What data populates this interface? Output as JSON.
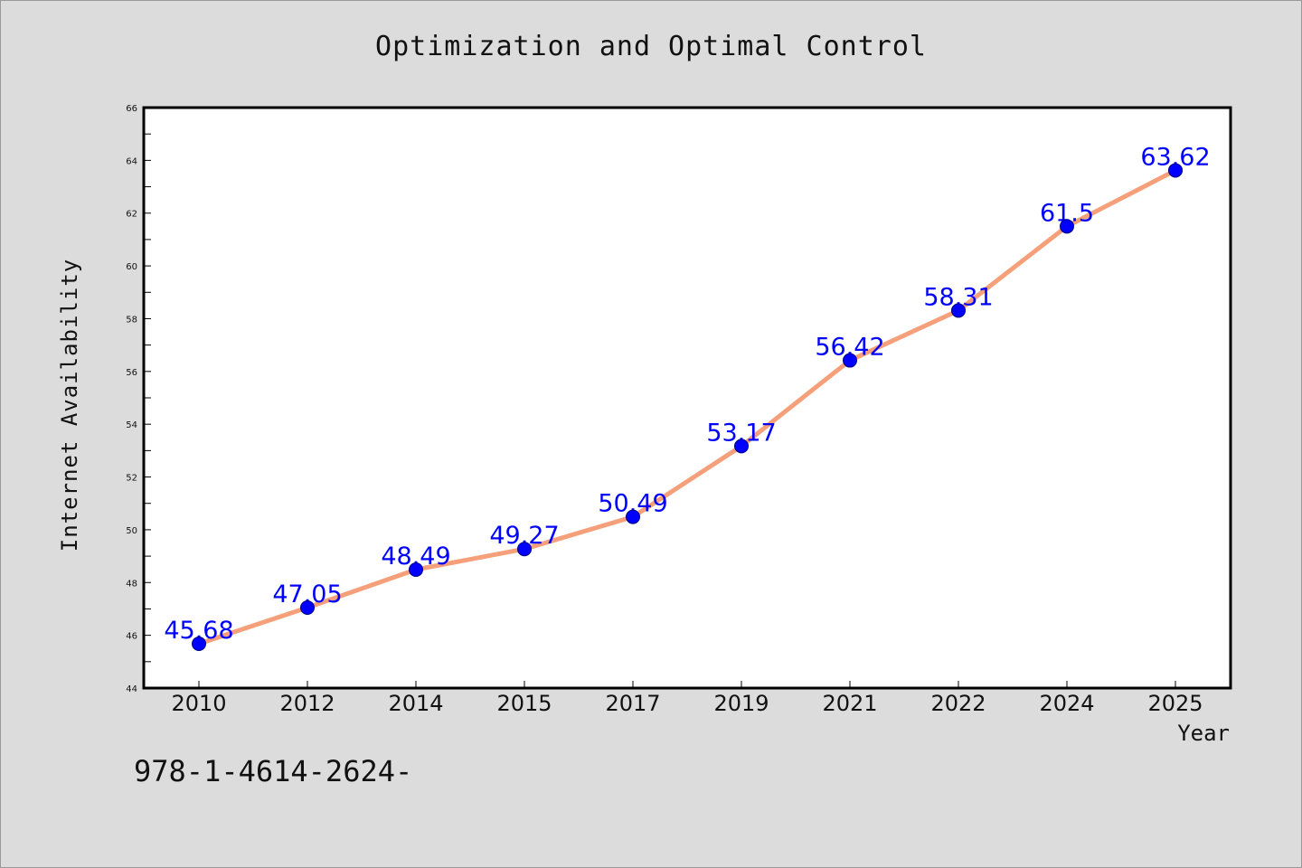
{
  "chart_data": {
    "type": "line",
    "title": "Optimization and Optimal Control",
    "xlabel": "Year",
    "ylabel": "Internet Availability",
    "categories": [
      "2010",
      "2012",
      "2014",
      "2015",
      "2017",
      "2019",
      "2021",
      "2022",
      "2024",
      "2025"
    ],
    "series": [
      {
        "values": [
          45.68,
          47.05,
          48.49,
          49.27,
          50.49,
          53.17,
          56.42,
          58.31,
          61.5,
          63.62
        ],
        "data_labels": [
          "45.68",
          "47.05",
          "48.49",
          "49.27",
          "50.49",
          "53.17",
          "56.42",
          "58.31",
          "61.5",
          "63.62"
        ],
        "line_color": "#f5a07a",
        "marker_color": "#0000ff"
      }
    ],
    "ylim": [
      44,
      66
    ],
    "yticks": [
      "44",
      "46",
      "48",
      "50",
      "52",
      "54",
      "56",
      "58",
      "60",
      "62",
      "64",
      "66"
    ],
    "grid": false,
    "legend": "none"
  },
  "footnote": "978-1-4614-2624-",
  "colors": {
    "background": "#dcdcdc",
    "plot_background": "#ffffff",
    "line": "#f5a07a",
    "marker": "#0000ff",
    "data_label": "#0000ff"
  }
}
